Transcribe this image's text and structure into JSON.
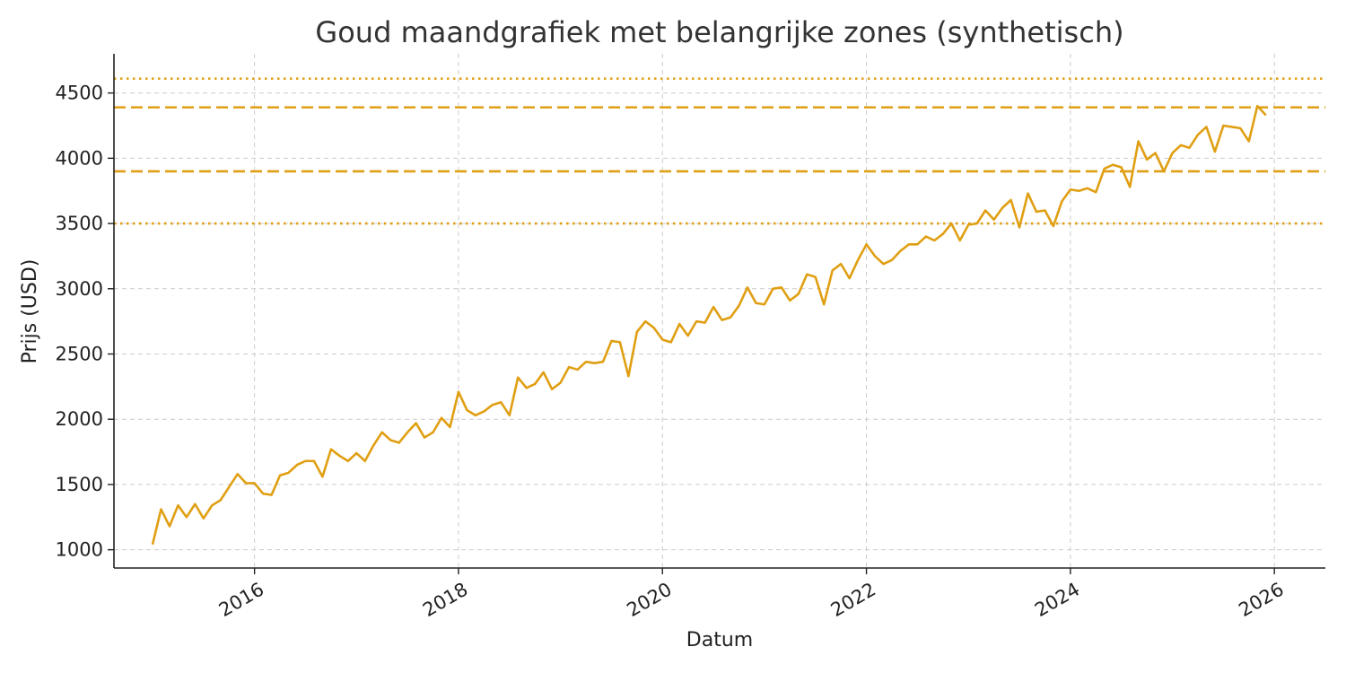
{
  "chart_data": {
    "type": "line",
    "title": "Goud maandgrafiek met belangrijke zones (synthetisch)",
    "xlabel": "Datum",
    "ylabel": "Prijs (USD)",
    "x_start": "2015-01",
    "x_step": "month",
    "xlim": [
      "2014-08-15",
      "2026-07-01"
    ],
    "ylim": [
      860,
      4800
    ],
    "x_ticks": [
      "2016",
      "2018",
      "2020",
      "2022",
      "2024",
      "2026"
    ],
    "y_ticks": [
      1000,
      1500,
      2000,
      2500,
      3000,
      3500,
      4000,
      4500
    ],
    "grid": true,
    "series": [
      {
        "color": "#e09f13",
        "values": [
          1040,
          1310,
          1180,
          1340,
          1250,
          1350,
          1240,
          1340,
          1380,
          1480,
          1580,
          1510,
          1510,
          1430,
          1420,
          1570,
          1590,
          1650,
          1680,
          1680,
          1560,
          1770,
          1720,
          1680,
          1740,
          1680,
          1800,
          1900,
          1840,
          1820,
          1900,
          1970,
          1860,
          1900,
          2010,
          1940,
          2210,
          2070,
          2030,
          2060,
          2110,
          2130,
          2030,
          2320,
          2240,
          2270,
          2360,
          2230,
          2280,
          2400,
          2380,
          2440,
          2430,
          2440,
          2600,
          2590,
          2330,
          2670,
          2750,
          2700,
          2610,
          2590,
          2730,
          2640,
          2750,
          2740,
          2860,
          2760,
          2780,
          2870,
          3010,
          2890,
          2880,
          3000,
          3010,
          2910,
          2960,
          3110,
          3090,
          2880,
          3140,
          3190,
          3080,
          3220,
          3340,
          3250,
          3190,
          3220,
          3290,
          3340,
          3340,
          3400,
          3370,
          3420,
          3500,
          3370,
          3490,
          3500,
          3600,
          3530,
          3620,
          3680,
          3470,
          3730,
          3590,
          3600,
          3480,
          3670,
          3760,
          3750,
          3770,
          3740,
          3920,
          3950,
          3930,
          3780,
          4130,
          3990,
          4040,
          3900,
          4040,
          4100,
          4080,
          4180,
          4240,
          4050,
          4250,
          4240,
          4230,
          4130,
          4400,
          4330
        ]
      }
    ],
    "zones": [
      {
        "value": 4610,
        "style": "dotted",
        "color": "#e09f13"
      },
      {
        "value": 4390,
        "style": "dashed",
        "color": "#e09f13"
      },
      {
        "value": 3900,
        "style": "dashed",
        "color": "#e09f13"
      },
      {
        "value": 3500,
        "style": "dotted",
        "color": "#e09f13"
      }
    ]
  }
}
